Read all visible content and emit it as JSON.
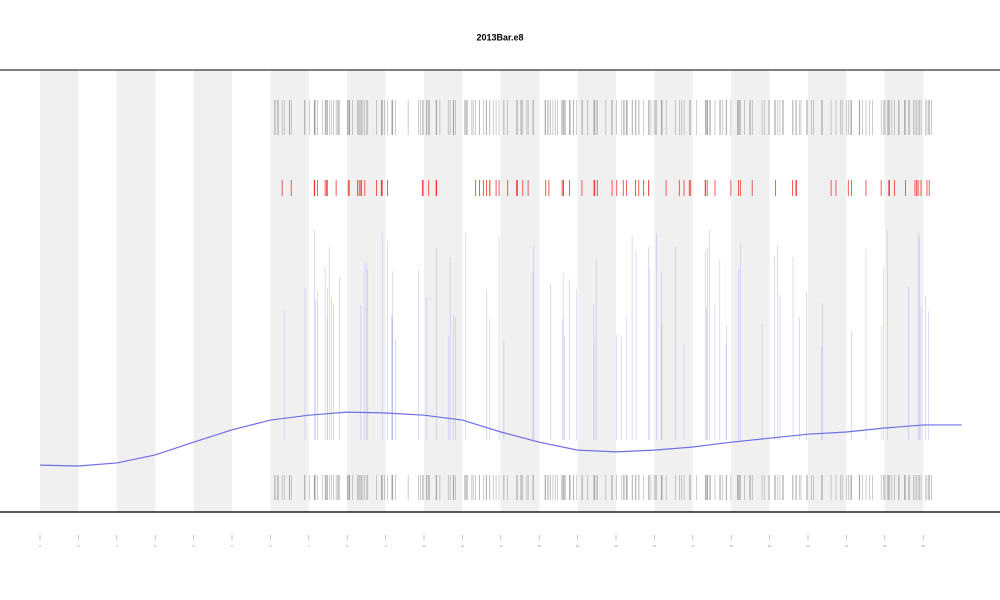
{
  "chart_data": {
    "type": "line",
    "title": "2013Bar.e8",
    "x": [
      0,
      1,
      2,
      3,
      4,
      5,
      6,
      7,
      8,
      9,
      10,
      11,
      12,
      13,
      14,
      15,
      16,
      17,
      18,
      19,
      20,
      21,
      22,
      23,
      24
    ],
    "series": [
      {
        "color": "#6f6fe6",
        "values": [
          10.6,
          10.4,
          11.1,
          12.9,
          15.8,
          18.6,
          20.8,
          21.9,
          22.6,
          22.4,
          21.9,
          20.8,
          18.1,
          15.8,
          14.0,
          13.6,
          14.0,
          14.7,
          15.8,
          16.7,
          17.6,
          18.1,
          19.0,
          19.7,
          19.7
        ]
      }
    ],
    "xlim": [
      0,
      25
    ],
    "ylim": [
      0,
      100
    ],
    "xticks": [
      0,
      1,
      2,
      3,
      4,
      5,
      6,
      7,
      8,
      9,
      10,
      11,
      12,
      13,
      14,
      15,
      16,
      17,
      18,
      19,
      20,
      21,
      22,
      23
    ]
  }
}
